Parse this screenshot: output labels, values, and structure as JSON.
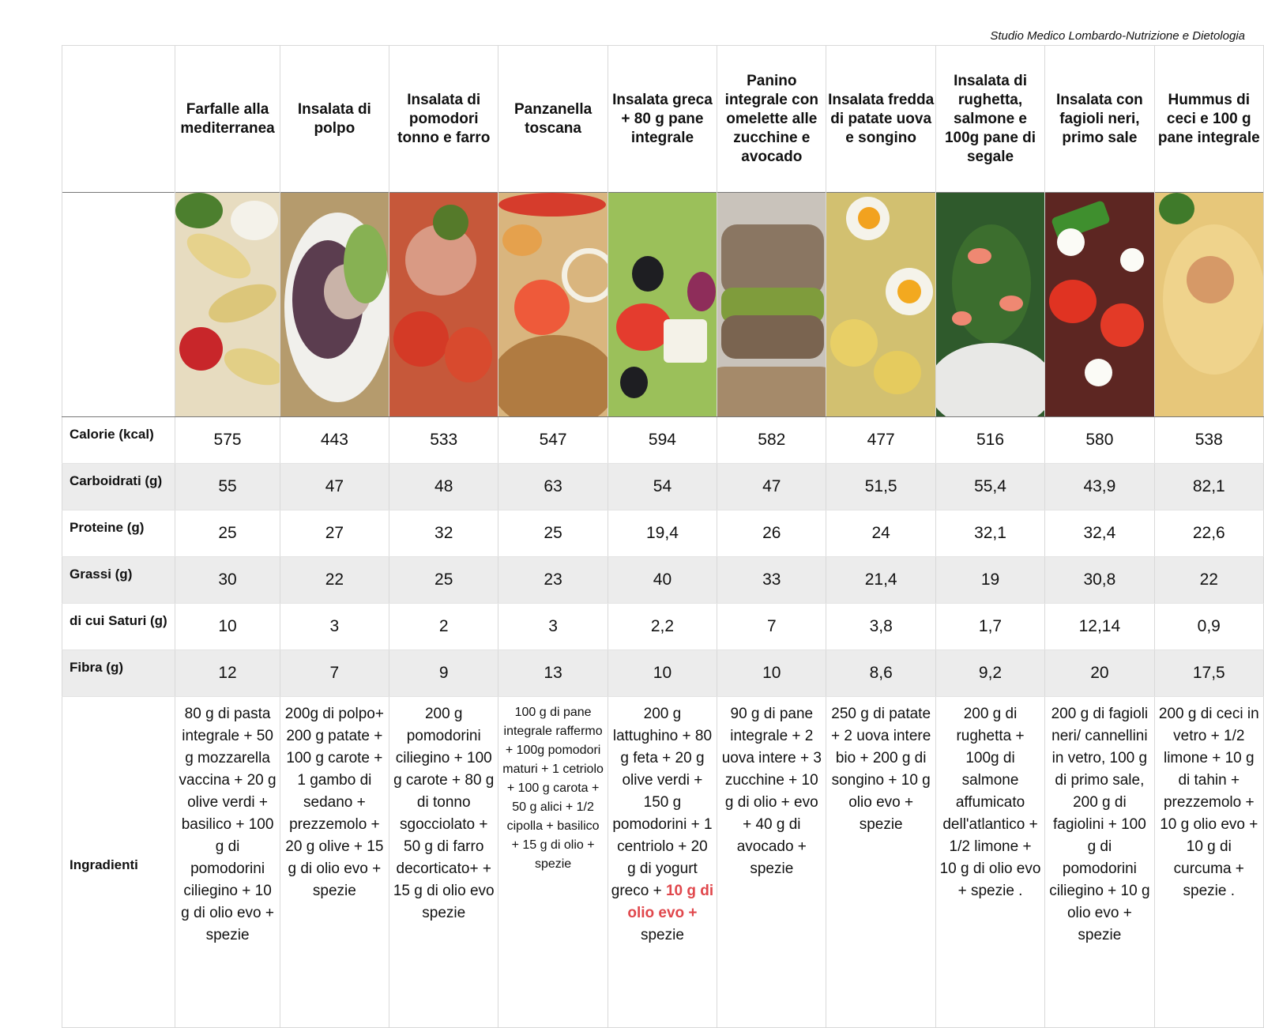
{
  "credit": "Studio Medico Lombardo-Nutrizione e Dietologia",
  "dishes": [
    "Farfalle alla mediterranea",
    "Insalata di polpo",
    "Insalata di pomodori tonno e farro",
    "Panzanella toscana",
    "Insalata greca + 80 g pane integrale",
    "Panino integrale con omelette alle zucchine e avocado",
    "Insalata fredda di patate uova e songino",
    "Insalata di rughetta, salmone e 100g pane di segale",
    "Insalata con fagioli neri, primo sale",
    "Hummus di ceci e 100 g pane integrale"
  ],
  "rows": [
    {
      "label": "Calorie (kcal)",
      "values": [
        "575",
        "443",
        "533",
        "547",
        "594",
        "582",
        "477",
        "516",
        "580",
        "538"
      ]
    },
    {
      "label": "Carboidrati (g)",
      "values": [
        "55",
        "47",
        "48",
        "63",
        "54",
        "47",
        "51,5",
        "55,4",
        "43,9",
        "82,1"
      ]
    },
    {
      "label": "Proteine (g)",
      "values": [
        "25",
        "27",
        "32",
        "25",
        "19,4",
        "26",
        "24",
        "32,1",
        "32,4",
        "22,6"
      ]
    },
    {
      "label": "Grassi (g)",
      "values": [
        "30",
        "22",
        "25",
        "23",
        "40",
        "33",
        "21,4",
        "19",
        "30,8",
        "22"
      ]
    },
    {
      "label": "di cui Saturi (g)",
      "values": [
        "10",
        "3",
        "2",
        "3",
        "2,2",
        "7",
        "3,8",
        "1,7",
        "12,14",
        "0,9"
      ]
    },
    {
      "label": "Fibra (g)",
      "values": [
        "12",
        "7",
        "9",
        "13",
        "10",
        "10",
        "8,6",
        "9,2",
        "20",
        "17,5"
      ]
    }
  ],
  "ingredients_label": "Ingradienti",
  "ingredients": [
    "80 g di pasta integrale + 50 g mozzarella vaccina + 20 g olive verdi + basilico + 100 g di pomodorini ciliegino + 10 g di olio evo + spezie",
    "200g di polpo+ 200 g patate + 100 g carote + 1 gambo di sedano + prezzemolo + 20 g olive + 15 g di olio evo + spezie",
    "200 g pomodorini ciliegino + 100 g carote + 80 g di tonno sgocciolato + 50 g di farro decorticato+ + 15 g di olio evo spezie",
    "100 g di pane integrale raffermo + 100g pomodori maturi + 1 cetriolo + 100 g carota + 50 g alici + 1/2 cipolla + basilico + 15 g di olio + spezie",
    "200 g lattughino + 80 g feta + 20 g olive verdi + 150 g pomodorini + 1 centriolo + 20 g di yogurt greco +",
    "90 g di pane integrale + 2 uova intere + 3 zucchine + 10 g di olio + evo + 40 g di avocado + spezie",
    "250 g di patate + 2 uova intere bio + 200 g di songino + 10 g olio evo + spezie",
    "200 g di rughetta + 100g di salmone affumicato dell'atlantico + 1/2 limone + 10 g di olio evo + spezie .",
    "200 g di fagioli neri/ cannellini in vetro, 100 g di primo sale, 200 g di fagiolini + 100 g di pomodorini ciliegino + 10 g olio evo + spezie",
    "200 g di ceci in vetro + 1/2 limone + 10 g di tahin + prezzemolo + 10 g olio evo + 10 g di curcuma + spezie ."
  ],
  "ingredients_highlight": "10 g di olio evo +",
  "ingredients_tail": "spezie",
  "colors": {
    "highlight": "#e0474c",
    "alt_row": "#ececec"
  }
}
